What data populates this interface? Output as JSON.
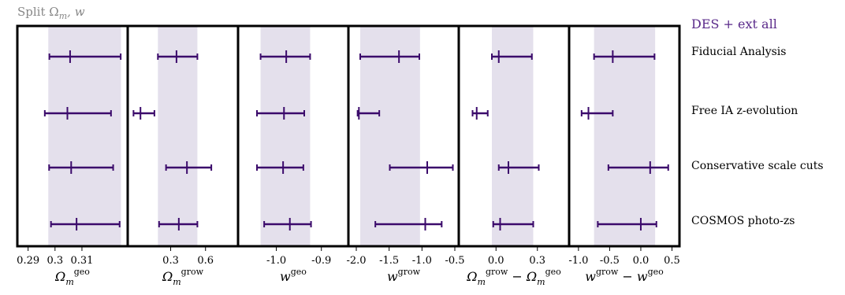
{
  "title": "Split Ω_m, w",
  "colors": {
    "errorbar": "#3b0a6b",
    "band": "#e4e0ec",
    "legend_text": "#5a2a8a",
    "title_text": "#888888",
    "frame": "#000000"
  },
  "chart_data": {
    "type": "errorbar",
    "legend": "DES + ext all",
    "rows": [
      "Fiducial Analysis",
      "Free IA z-evolution",
      "Conservative scale cuts",
      "COSMOS photo-zs"
    ],
    "panels": [
      {
        "name": "omega_m_geo",
        "xlabel_main": "Ω",
        "xlabel_sub": "m",
        "xlabel_sup": "geo",
        "xlabel_suffix": "",
        "xlim": [
          0.286,
          0.327
        ],
        "ticks": [
          0.29,
          0.3,
          0.31
        ],
        "tick_labels": [
          "0.29",
          "0.3",
          "0.31"
        ],
        "band": [
          0.2975,
          0.3245
        ],
        "points": [
          {
            "center": 0.3056,
            "lo": 0.2979,
            "hi": 0.3244
          },
          {
            "center": 0.3046,
            "lo": 0.2962,
            "hi": 0.3208
          },
          {
            "center": 0.306,
            "lo": 0.2978,
            "hi": 0.3216
          },
          {
            "center": 0.308,
            "lo": 0.2985,
            "hi": 0.324
          }
        ]
      },
      {
        "name": "omega_m_grow",
        "xlabel_main": "Ω",
        "xlabel_sub": "m",
        "xlabel_sup": "grow",
        "xlabel_suffix": "",
        "xlim": [
          -0.07,
          0.88
        ],
        "ticks": [
          0.3,
          0.6
        ],
        "tick_labels": [
          "0.3",
          "0.6"
        ],
        "band": [
          0.19,
          0.53
        ],
        "points": [
          {
            "center": 0.35,
            "lo": 0.19,
            "hi": 0.53
          },
          {
            "center": 0.04,
            "lo": -0.02,
            "hi": 0.16
          },
          {
            "center": 0.44,
            "lo": 0.26,
            "hi": 0.65
          },
          {
            "center": 0.37,
            "lo": 0.2,
            "hi": 0.53
          }
        ]
      },
      {
        "name": "w_geo",
        "xlabel_main": "w",
        "xlabel_sub": "",
        "xlabel_sup": "geo",
        "xlabel_suffix": "",
        "xlim": [
          -1.085,
          -0.84
        ],
        "ticks": [
          -1.0,
          -0.9
        ],
        "tick_labels": [
          "-1.0",
          "-0.9"
        ],
        "band": [
          -1.035,
          -0.925
        ],
        "points": [
          {
            "center": -0.978,
            "lo": -1.035,
            "hi": -0.925
          },
          {
            "center": -0.983,
            "lo": -1.043,
            "hi": -0.938
          },
          {
            "center": -0.985,
            "lo": -1.043,
            "hi": -0.94
          },
          {
            "center": -0.97,
            "lo": -1.027,
            "hi": -0.923
          }
        ]
      },
      {
        "name": "w_grow",
        "xlabel_main": "w",
        "xlabel_sub": "",
        "xlabel_sup": "grow",
        "xlabel_suffix": "",
        "xlim": [
          -2.12,
          -0.44
        ],
        "ticks": [
          -2.0,
          -1.5,
          -1.0,
          -0.5
        ],
        "tick_labels": [
          "-2.0",
          "-1.5",
          "-1.0",
          "-0.5"
        ],
        "band": [
          -1.94,
          -1.03
        ],
        "points": [
          {
            "center": -1.35,
            "lo": -1.94,
            "hi": -1.04
          },
          {
            "center": -1.96,
            "lo": -1.98,
            "hi": -1.65
          },
          {
            "center": -0.92,
            "lo": -1.49,
            "hi": -0.53
          },
          {
            "center": -0.95,
            "lo": -1.71,
            "hi": -0.7
          }
        ]
      },
      {
        "name": "delta_omega_m",
        "xlabel_main": "Ω",
        "xlabel_sub": "m",
        "xlabel_sup": "grow",
        "xlabel_suffix": " − Ω",
        "xlabel_sub2": "m",
        "xlabel_sup2": "geo",
        "xlim": [
          -0.27,
          0.53
        ],
        "ticks": [
          0.0,
          0.3
        ],
        "tick_labels": [
          "0.0",
          "0.3"
        ],
        "band": [
          -0.03,
          0.27
        ],
        "points": [
          {
            "center": 0.02,
            "lo": -0.03,
            "hi": 0.26
          },
          {
            "center": -0.14,
            "lo": -0.17,
            "hi": -0.06
          },
          {
            "center": 0.09,
            "lo": 0.02,
            "hi": 0.31
          },
          {
            "center": 0.03,
            "lo": -0.02,
            "hi": 0.27
          }
        ]
      },
      {
        "name": "delta_w",
        "xlabel_main": "w",
        "xlabel_sub": "",
        "xlabel_sup": "grow",
        "xlabel_suffix": " − w",
        "xlabel_sub2": "",
        "xlabel_sup2": "geo",
        "xlim": [
          -1.15,
          0.62
        ],
        "ticks": [
          -1.0,
          -0.5,
          0.0,
          0.5
        ],
        "tick_labels": [
          "-1.0",
          "-0.5",
          "0.0",
          "0.5"
        ],
        "band": [
          -0.75,
          0.23
        ],
        "points": [
          {
            "center": -0.45,
            "lo": -0.75,
            "hi": 0.22
          },
          {
            "center": -0.84,
            "lo": -0.95,
            "hi": -0.45
          },
          {
            "center": 0.15,
            "lo": -0.52,
            "hi": 0.44
          },
          {
            "center": 0.0,
            "lo": -0.69,
            "hi": 0.25
          }
        ]
      }
    ]
  }
}
